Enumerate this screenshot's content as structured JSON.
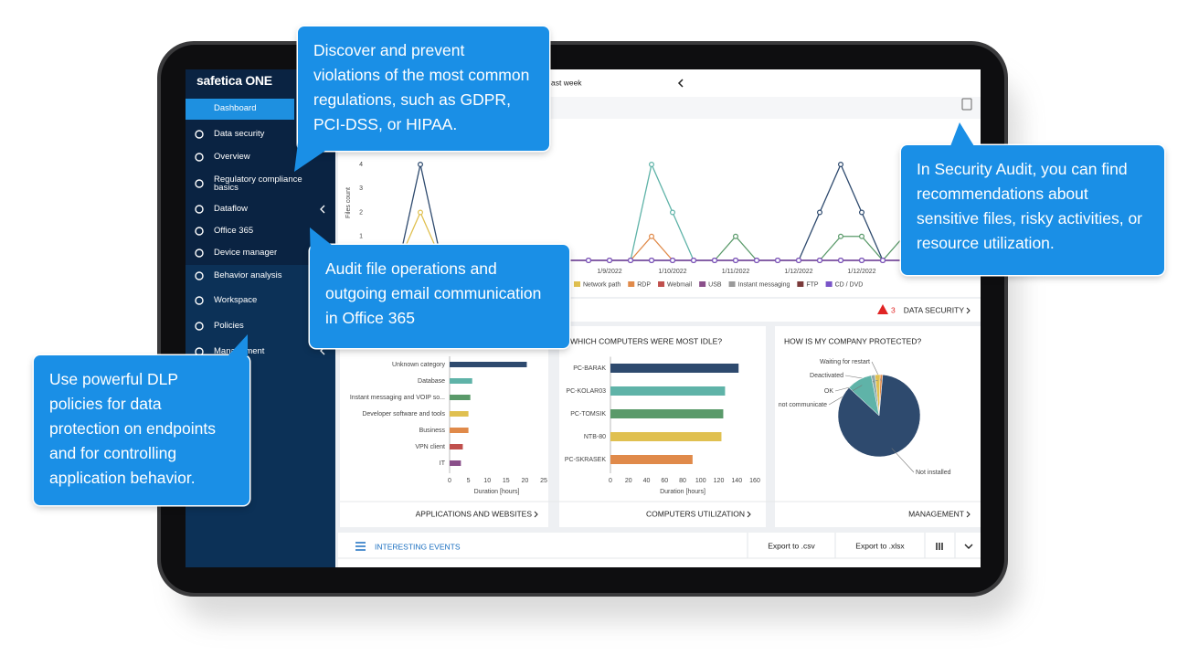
{
  "sidebar": {
    "brand": "safetica ONE",
    "items": [
      {
        "label": "Dashboard",
        "active": true
      },
      {
        "label": "Data security"
      },
      {
        "label": "Overview"
      },
      {
        "label": "Regulatory compliance basics"
      },
      {
        "label": "Dataflow"
      },
      {
        "label": "Office 365"
      },
      {
        "label": "Device manager"
      },
      {
        "label": "Behavior analysis"
      },
      {
        "label": "Workspace"
      },
      {
        "label": "Policies"
      },
      {
        "label": "Management"
      }
    ]
  },
  "header": {
    "period": "ast week"
  },
  "alerts": {
    "count": 3,
    "link": "DATA SECURITY"
  },
  "chart_data": [
    {
      "type": "line",
      "y_label": "Files count",
      "categories": [
        null,
        null,
        null,
        null,
        null,
        null,
        null,
        null,
        null,
        null,
        null,
        null,
        "1/9/2022",
        null,
        null,
        "1/10/2022",
        null,
        null,
        "1/11/2022",
        null,
        null,
        "1/12/2022",
        null,
        null,
        "1/12/2022",
        null,
        null,
        null,
        null,
        null
      ],
      "ylim": [
        0,
        4
      ],
      "yticks": [
        1,
        2,
        3,
        4
      ],
      "grid": false,
      "series": [
        {
          "color": "#2e4a6e",
          "values": [
            0,
            0,
            0,
            4,
            0,
            0,
            0,
            0,
            0,
            0,
            0,
            0,
            0,
            0,
            0,
            0,
            0,
            0,
            0,
            0,
            0,
            0,
            2,
            4,
            2,
            0,
            0,
            0,
            0,
            0
          ]
        },
        {
          "color": "#5fb3a8",
          "values": [
            0,
            0,
            0,
            0,
            0,
            0,
            0,
            0,
            0,
            0,
            0,
            0,
            0,
            0,
            4,
            2,
            0,
            0,
            0,
            0,
            0,
            0,
            0,
            0,
            0,
            0,
            0,
            0,
            0,
            0
          ]
        },
        {
          "color": "#5a9a6a",
          "values": [
            0,
            0,
            0,
            0,
            0,
            0,
            0,
            0,
            0,
            0,
            0,
            0,
            0,
            0,
            0,
            0,
            0,
            0,
            1,
            0,
            0,
            0,
            0,
            1,
            1,
            0,
            1,
            0,
            0,
            0
          ]
        },
        {
          "name": "Network path",
          "color": "#e0c050",
          "values": [
            0,
            0,
            0,
            2,
            0,
            0,
            0,
            0,
            0,
            0,
            0,
            0,
            0,
            0,
            0,
            0,
            0,
            0,
            0,
            0,
            0,
            0,
            0,
            0,
            0,
            0,
            0,
            0,
            0,
            0
          ]
        },
        {
          "name": "RDP",
          "color": "#e08a4a",
          "values": [
            0,
            0,
            0,
            0,
            0,
            0,
            0,
            0,
            0,
            0,
            0,
            0,
            0,
            0,
            1,
            0,
            0,
            0,
            0,
            0,
            0,
            0,
            0,
            0,
            0,
            0,
            0,
            0,
            0,
            0
          ]
        },
        {
          "name": "Webmail",
          "color": "#c0504d",
          "values": [
            0,
            0,
            0,
            0,
            0,
            0,
            0,
            0,
            0,
            0,
            0,
            0,
            0,
            0,
            0,
            0,
            0,
            0,
            0,
            0,
            0,
            0,
            0,
            0,
            0,
            0,
            0,
            0,
            0,
            0
          ]
        },
        {
          "name": "USB",
          "color": "#8a4f8a",
          "values": [
            0,
            0,
            0,
            0,
            0,
            0,
            0,
            0,
            0,
            0,
            0,
            0,
            0,
            0,
            0,
            0,
            0,
            0,
            0,
            0,
            0,
            0,
            0,
            0,
            0,
            0,
            0,
            0,
            0,
            0
          ]
        },
        {
          "name": "Instant messaging",
          "color": "#9a9a9a",
          "values": [
            0,
            0,
            0,
            0,
            0,
            0,
            0,
            0,
            0,
            0,
            0,
            0,
            0,
            0,
            0,
            0,
            0,
            0,
            0,
            0,
            0,
            0,
            0,
            0,
            0,
            0,
            0,
            0,
            0,
            0
          ]
        },
        {
          "name": "FTP",
          "color": "#7a3a3a",
          "values": [
            0,
            0,
            0,
            0,
            0,
            0,
            0,
            0,
            0,
            0,
            0,
            0,
            0,
            0,
            0,
            0,
            0,
            0,
            0,
            0,
            0,
            0,
            0,
            0,
            0,
            0,
            0,
            0,
            0,
            0
          ]
        },
        {
          "name": "CD / DVD",
          "color": "#7a55c8",
          "values": [
            0,
            0,
            0,
            0,
            0,
            0,
            0,
            0,
            0,
            0,
            0,
            0,
            0,
            0,
            0,
            0,
            0,
            0,
            0,
            0,
            0,
            0,
            0,
            0,
            0,
            0,
            0,
            0,
            0,
            0
          ]
        }
      ]
    },
    {
      "type": "barh",
      "categories": [
        "Unknown category",
        "Database",
        "Instant messaging and VOIP so...",
        "Developer software and tools",
        "Business",
        "VPN client",
        "IT"
      ],
      "values": [
        20.5,
        6,
        5.5,
        5,
        5,
        3.5,
        3
      ],
      "colors": [
        "#2e4a6e",
        "#5fb3a8",
        "#5a9a6a",
        "#e0c050",
        "#e08a4a",
        "#c0504d",
        "#8a4f8a"
      ],
      "xlim": [
        0,
        25
      ],
      "xticks": [
        0,
        5,
        10,
        15,
        20,
        25
      ],
      "x_label": "Duration [hours]",
      "link": "APPLICATIONS AND WEBSITES"
    },
    {
      "type": "barh",
      "title": "WHICH COMPUTERS WERE MOST IDLE?",
      "categories": [
        "PC-BARAK",
        "PC-KOLAR03",
        "PC-TOMSIK",
        "NTB-80",
        "PC-SKRASEK"
      ],
      "values": [
        142,
        127,
        125,
        123,
        91
      ],
      "colors": [
        "#2e4a6e",
        "#5fb3a8",
        "#5a9a6a",
        "#e0c050",
        "#e08a4a"
      ],
      "xlim": [
        0,
        160
      ],
      "xticks": [
        0,
        20,
        40,
        60,
        80,
        100,
        120,
        140,
        160
      ],
      "x_label": "Duration [hours]",
      "link": "COMPUTERS UTILIZATION"
    },
    {
      "type": "pie",
      "title": "HOW IS MY COMPANY PROTECTED?",
      "categories": [
        "Waiting for restart",
        "Deactivated",
        "OK",
        "not communicate",
        "Not installed"
      ],
      "values": [
        1,
        2,
        1.5,
        10,
        85.5
      ],
      "colors": [
        "#e08a4a",
        "#e0c050",
        "#8fa8a8",
        "#5fb3a8",
        "#2e4a6e"
      ],
      "link": "MANAGEMENT"
    }
  ],
  "events": {
    "title": "INTERESTING EVENTS",
    "export_csv": "Export to .csv",
    "export_xlsx": "Export to .xlsx"
  },
  "callouts": [
    "Discover and prevent violations of the most common regulations, such as GDPR, PCI-DSS, or HIPAA.",
    "In Security Audit, you can find recommendations about sensitive files, risky activities, or resource utilization.",
    "Audit file operations and outgoing email communication in Office 365",
    "Use powerful DLP policies for data protection on endpoints and for controlling application behavior."
  ]
}
